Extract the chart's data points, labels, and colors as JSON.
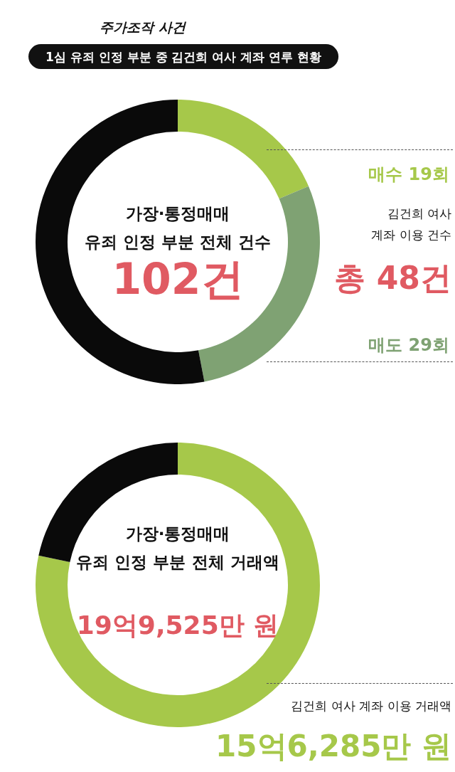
{
  "chart_data": [
    {
      "type": "donut",
      "title": "주가조작 사건",
      "subtitle": "1심 유죄 인정 부분 중 김건희 여사 계좌 연루 현황",
      "categories": [
        null,
        null,
        null
      ],
      "values": [
        18.6,
        28.4,
        53.0
      ],
      "colors": [
        "#a6c84a",
        "#7fa273",
        "#0a0a0a"
      ],
      "annotations": [
        "가장·통정매매\n유죄 인정 부분 전체 건수",
        "102건",
        "김건희 여사\n계좌 이용 건수",
        "총 48건",
        "매수 19회",
        "매도 29회"
      ]
    },
    {
      "type": "donut",
      "categories": [
        null,
        null
      ],
      "values": [
        78.3,
        21.7
      ],
      "colors": [
        "#a6c84a",
        "#0a0a0a"
      ],
      "annotations": [
        "가장·통정매매\n유죄 인정 부분 전체 거래액",
        "19억9,525만 원",
        "김건희 여사 계좌 이용 거래액",
        "15억6,285만 원"
      ]
    }
  ]
}
